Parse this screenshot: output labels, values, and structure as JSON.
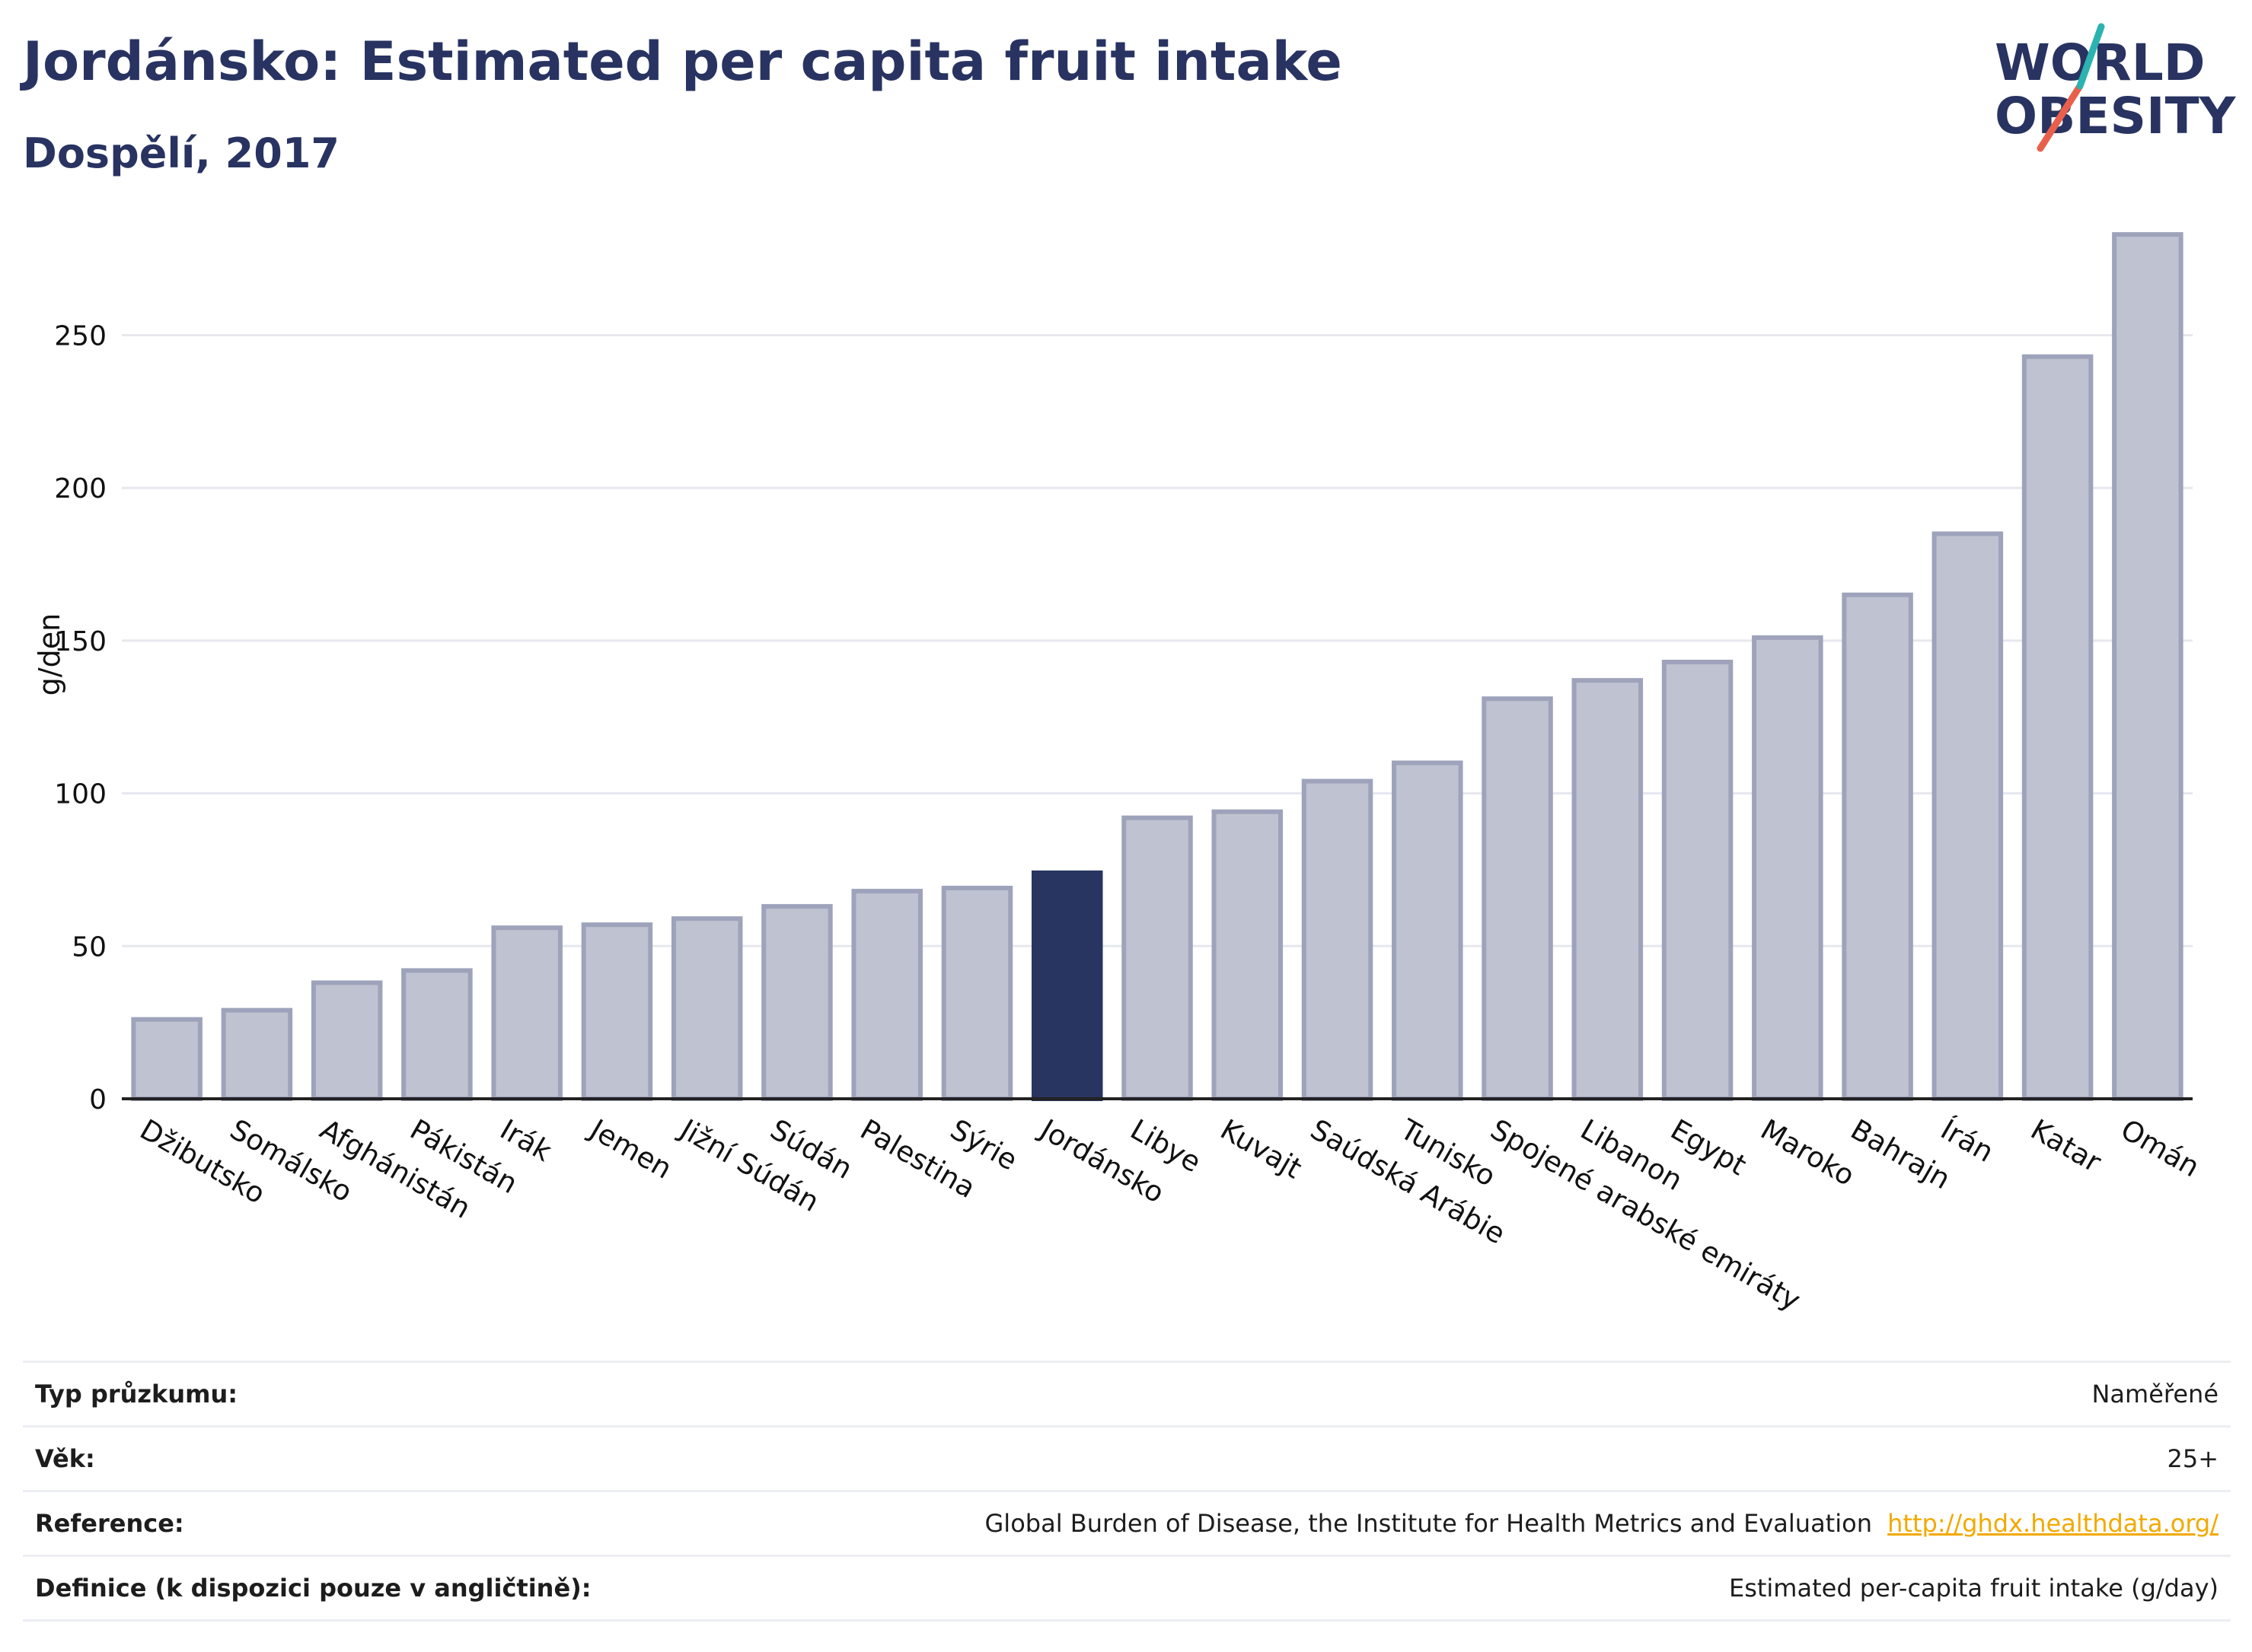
{
  "title": "Jordánsko: Estimated per capita fruit intake",
  "subtitle": "Dospělí, 2017",
  "logo": {
    "line1": "WORLD",
    "line2": "OBESITY"
  },
  "colors": {
    "bar": "#bfc2d0",
    "bar_stroke": "#9ea3bb",
    "highlight": "#283561",
    "grid": "#e6e8ee",
    "text": "#283361",
    "logo_slash_teal": "#2bb3b1",
    "logo_slash_red": "#e8604c"
  },
  "chart_data": {
    "type": "bar",
    "title": "Jordánsko: Estimated per capita fruit intake",
    "subtitle": "Dospělí, 2017",
    "xlabel": "",
    "ylabel": "g/den",
    "ylim": [
      0,
      290
    ],
    "yticks": [
      0,
      50,
      100,
      150,
      200,
      250
    ],
    "grid": true,
    "categories": [
      "Džibutsko",
      "Somálsko",
      "Afghánistán",
      "Pákistán",
      "Irák",
      "Jemen",
      "Jižní Súdán",
      "Súdán",
      "Palestina",
      "Sýrie",
      "Jordánsko",
      "Libye",
      "Kuvajt",
      "Saúdská Arábie",
      "Tunisko",
      "Spojené arabské emiráty",
      "Libanon",
      "Egypt",
      "Maroko",
      "Bahrajn",
      "Írán",
      "Katar",
      "Omán"
    ],
    "values": [
      26,
      29,
      38,
      42,
      56,
      57,
      59,
      63,
      68,
      69,
      74,
      92,
      94,
      104,
      110,
      131,
      137,
      143,
      151,
      165,
      185,
      243,
      283
    ],
    "highlight": "Jordánsko"
  },
  "info": [
    {
      "label": "Typ průzkumu:",
      "value": "Naměřené"
    },
    {
      "label": "Věk:",
      "value": "25+"
    },
    {
      "label": "Reference:",
      "value": "Global Burden of Disease, the Institute for Health Metrics and Evaluation",
      "link": "http://ghdx.healthdata.org/"
    },
    {
      "label": "Definice (k dispozici pouze v angličtině):",
      "value": "Estimated per-capita fruit intake (g/day)"
    }
  ]
}
